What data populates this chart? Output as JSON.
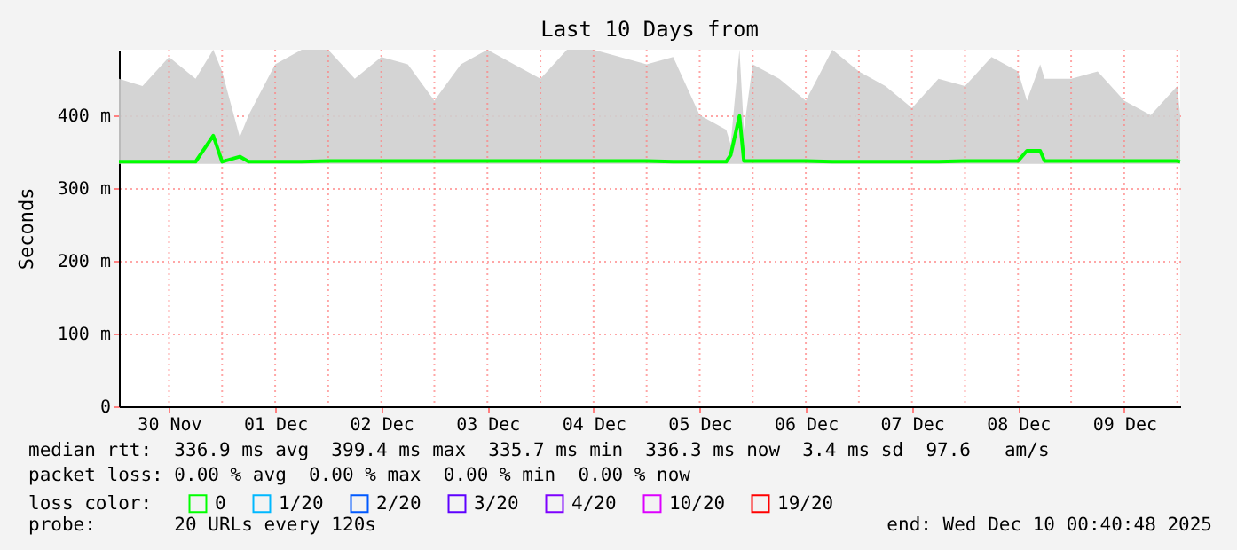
{
  "chart_data": {
    "type": "line",
    "title": "Last 10 Days from",
    "ylabel": "Seconds",
    "legend_title": "loss color:",
    "legend": "bottom",
    "grid": true,
    "annotations": [
      "median rtt:  336.9 ms avg  399.4 ms max  335.7 ms min  336.3 ms now  3.4 ms sd  97.6   am/s",
      "packet loss: 0.00 % avg  0.00 % max  0.00 % min  0.00 % now",
      "probe:       20 URLs every 120s",
      "end: Wed Dec 10 00:40:48 2025"
    ],
    "xlim": [
      "2025-11-30T00:40",
      "2025-12-10T00:40"
    ],
    "ylim": [
      0,
      490
    ],
    "yticks": [
      0,
      {
        "value": 100,
        "label": "100 m"
      },
      {
        "value": 200,
        "label": "200 m"
      },
      {
        "value": 300,
        "label": "300 m"
      },
      {
        "value": 400,
        "label": "400 m"
      }
    ],
    "xticks": [
      {
        "value": "2025-11-30T12:00",
        "label": "30 Nov"
      },
      {
        "value": "2025-12-01T00:00",
        "label": null
      },
      {
        "value": "2025-12-01T12:00",
        "label": "01 Dec"
      },
      {
        "value": "2025-12-02T00:00",
        "label": null
      },
      {
        "value": "2025-12-02T12:00",
        "label": "02 Dec"
      },
      {
        "value": "2025-12-03T00:00",
        "label": null
      },
      {
        "value": "2025-12-03T12:00",
        "label": "03 Dec"
      },
      {
        "value": "2025-12-04T00:00",
        "label": null
      },
      {
        "value": "2025-12-04T12:00",
        "label": "04 Dec"
      },
      {
        "value": "2025-12-05T00:00",
        "label": null
      },
      {
        "value": "2025-12-05T12:00",
        "label": "05 Dec"
      },
      {
        "value": "2025-12-06T00:00",
        "label": null
      },
      {
        "value": "2025-12-06T12:00",
        "label": "06 Dec"
      },
      {
        "value": "2025-12-07T00:00",
        "label": null
      },
      {
        "value": "2025-12-07T12:00",
        "label": "07 Dec"
      },
      {
        "value": "2025-12-08T00:00",
        "label": null
      },
      {
        "value": "2025-12-08T12:00",
        "label": "08 Dec"
      },
      {
        "value": "2025-12-09T00:00",
        "label": null
      },
      {
        "value": "2025-12-09T12:00",
        "label": "09 Dec"
      },
      {
        "value": "2025-12-10T00:00",
        "label": null
      }
    ],
    "x": [
      "2025-11-30T00:40",
      "2025-11-30T06:00",
      "2025-11-30T12:00",
      "2025-11-30T18:00",
      "2025-11-30T22:00",
      "2025-12-01T00:00",
      "2025-12-01T04:00",
      "2025-12-01T06:00",
      "2025-12-01T12:00",
      "2025-12-01T18:00",
      "2025-12-02T00:00",
      "2025-12-02T06:00",
      "2025-12-02T12:00",
      "2025-12-02T18:00",
      "2025-12-03T00:00",
      "2025-12-03T06:00",
      "2025-12-03T12:00",
      "2025-12-03T18:00",
      "2025-12-04T00:00",
      "2025-12-04T06:00",
      "2025-12-04T12:00",
      "2025-12-04T18:00",
      "2025-12-05T00:00",
      "2025-12-05T06:00",
      "2025-12-05T12:00",
      "2025-12-05T18:00",
      "2025-12-05T19:00",
      "2025-12-05T21:00",
      "2025-12-05T22:00",
      "2025-12-06T00:00",
      "2025-12-06T06:00",
      "2025-12-06T12:00",
      "2025-12-06T18:00",
      "2025-12-07T00:00",
      "2025-12-07T06:00",
      "2025-12-07T12:00",
      "2025-12-07T18:00",
      "2025-12-08T00:00",
      "2025-12-08T06:00",
      "2025-12-08T12:00",
      "2025-12-08T14:00",
      "2025-12-08T17:00",
      "2025-12-08T18:00",
      "2025-12-09T00:00",
      "2025-12-09T06:00",
      "2025-12-09T12:00",
      "2025-12-09T18:00",
      "2025-12-10T00:00",
      "2025-12-10T00:40"
    ],
    "series": [
      {
        "name": "0",
        "color": "#00ff00",
        "values": [
          336,
          336,
          336,
          336,
          372,
          336,
          343,
          336,
          336,
          336,
          337,
          337,
          337,
          337,
          337,
          337,
          337,
          337,
          337,
          337,
          337,
          337,
          337,
          336,
          336,
          336,
          345,
          399,
          337,
          337,
          337,
          337,
          336,
          336,
          336,
          336,
          336,
          337,
          337,
          337,
          351,
          351,
          337,
          337,
          337,
          337,
          337,
          337,
          336
        ],
        "lower": [
          333,
          333,
          333,
          333,
          333,
          333,
          333,
          333,
          333,
          333,
          333,
          333,
          333,
          333,
          333,
          333,
          333,
          333,
          333,
          333,
          333,
          333,
          333,
          333,
          333,
          333,
          333,
          333,
          333,
          333,
          333,
          333,
          333,
          333,
          333,
          333,
          333,
          333,
          333,
          333,
          333,
          333,
          333,
          333,
          333,
          333,
          333,
          333,
          333
        ],
        "upper": [
          450,
          440,
          480,
          450,
          490,
          460,
          370,
          400,
          470,
          490,
          490,
          450,
          480,
          470,
          420,
          470,
          490,
          470,
          450,
          490,
          490,
          480,
          470,
          480,
          400,
          380,
          360,
          490,
          380,
          470,
          450,
          420,
          490,
          460,
          440,
          410,
          450,
          440,
          480,
          460,
          420,
          470,
          450,
          450,
          460,
          420,
          400,
          440,
          400
        ]
      },
      {
        "name": "1/20",
        "color": "#00b8ff",
        "values": [
          null,
          null,
          null,
          null,
          null,
          null,
          null,
          null,
          null,
          null,
          null,
          null,
          null,
          null,
          null,
          null,
          null,
          null,
          null,
          null,
          null,
          null,
          null,
          null,
          null,
          null,
          null,
          null,
          null,
          null,
          null,
          null,
          null,
          null,
          null,
          null,
          null,
          null,
          null,
          null,
          null,
          null,
          null,
          null,
          null,
          null,
          null,
          null,
          null
        ]
      },
      {
        "name": "2/20",
        "color": "#0059ff",
        "values": [
          null,
          null,
          null,
          null,
          null,
          null,
          null,
          null,
          null,
          null,
          null,
          null,
          null,
          null,
          null,
          null,
          null,
          null,
          null,
          null,
          null,
          null,
          null,
          null,
          null,
          null,
          null,
          null,
          null,
          null,
          null,
          null,
          null,
          null,
          null,
          null,
          null,
          null,
          null,
          null,
          null,
          null,
          null,
          null,
          null,
          null,
          null,
          null,
          null
        ]
      },
      {
        "name": "3/20",
        "color": "#5e00ff",
        "values": [
          null,
          null,
          null,
          null,
          null,
          null,
          null,
          null,
          null,
          null,
          null,
          null,
          null,
          null,
          null,
          null,
          null,
          null,
          null,
          null,
          null,
          null,
          null,
          null,
          null,
          null,
          null,
          null,
          null,
          null,
          null,
          null,
          null,
          null,
          null,
          null,
          null,
          null,
          null,
          null,
          null,
          null,
          null,
          null,
          null,
          null,
          null,
          null,
          null
        ]
      },
      {
        "name": "4/20",
        "color": "#7e00ff",
        "values": [
          null,
          null,
          null,
          null,
          null,
          null,
          null,
          null,
          null,
          null,
          null,
          null,
          null,
          null,
          null,
          null,
          null,
          null,
          null,
          null,
          null,
          null,
          null,
          null,
          null,
          null,
          null,
          null,
          null,
          null,
          null,
          null,
          null,
          null,
          null,
          null,
          null,
          null,
          null,
          null,
          null,
          null,
          null,
          null,
          null,
          null,
          null,
          null,
          null
        ]
      },
      {
        "name": "10/20",
        "color": "#dd00ff",
        "values": [
          null,
          null,
          null,
          null,
          null,
          null,
          null,
          null,
          null,
          null,
          null,
          null,
          null,
          null,
          null,
          null,
          null,
          null,
          null,
          null,
          null,
          null,
          null,
          null,
          null,
          null,
          null,
          null,
          null,
          null,
          null,
          null,
          null,
          null,
          null,
          null,
          null,
          null,
          null,
          null,
          null,
          null,
          null,
          null,
          null,
          null,
          null,
          null,
          null
        ]
      },
      {
        "name": "19/20",
        "color": "#ff0000",
        "values": [
          null,
          null,
          null,
          null,
          null,
          null,
          null,
          null,
          null,
          null,
          null,
          null,
          null,
          null,
          null,
          null,
          null,
          null,
          null,
          null,
          null,
          null,
          null,
          null,
          null,
          null,
          null,
          null,
          null,
          null,
          null,
          null,
          null,
          null,
          null,
          null,
          null,
          null,
          null,
          null,
          null,
          null,
          null,
          null,
          null,
          null,
          null,
          null,
          null
        ]
      }
    ]
  }
}
